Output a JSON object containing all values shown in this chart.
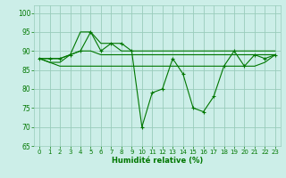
{
  "title": "",
  "xlabel": "Humidité relative (%)",
  "ylabel": "",
  "xlim": [
    -0.5,
    23.5
  ],
  "ylim": [
    65,
    102
  ],
  "yticks": [
    65,
    70,
    75,
    80,
    85,
    90,
    95,
    100
  ],
  "xticks": [
    0,
    1,
    2,
    3,
    4,
    5,
    6,
    7,
    8,
    9,
    10,
    11,
    12,
    13,
    14,
    15,
    16,
    17,
    18,
    19,
    20,
    21,
    22,
    23
  ],
  "bg_color": "#cceee8",
  "grid_color": "#99ccbb",
  "line_color": "#007700",
  "line1": [
    88,
    88,
    88,
    89,
    90,
    95,
    90,
    92,
    92,
    90,
    70,
    79,
    80,
    88,
    84,
    75,
    74,
    78,
    86,
    90,
    86,
    89,
    88,
    89
  ],
  "line2": [
    88,
    87,
    87,
    89,
    95,
    95,
    92,
    92,
    90,
    90,
    90,
    90,
    90,
    90,
    90,
    90,
    90,
    90,
    90,
    90,
    90,
    90,
    90,
    90
  ],
  "line3": [
    88,
    88,
    88,
    89,
    90,
    90,
    89,
    89,
    89,
    89,
    89,
    89,
    89,
    89,
    89,
    89,
    89,
    89,
    89,
    89,
    89,
    89,
    89,
    89
  ],
  "line4": [
    88,
    87,
    86,
    86,
    86,
    86,
    86,
    86,
    86,
    86,
    86,
    86,
    86,
    86,
    86,
    86,
    86,
    86,
    86,
    86,
    86,
    86,
    87,
    89
  ]
}
